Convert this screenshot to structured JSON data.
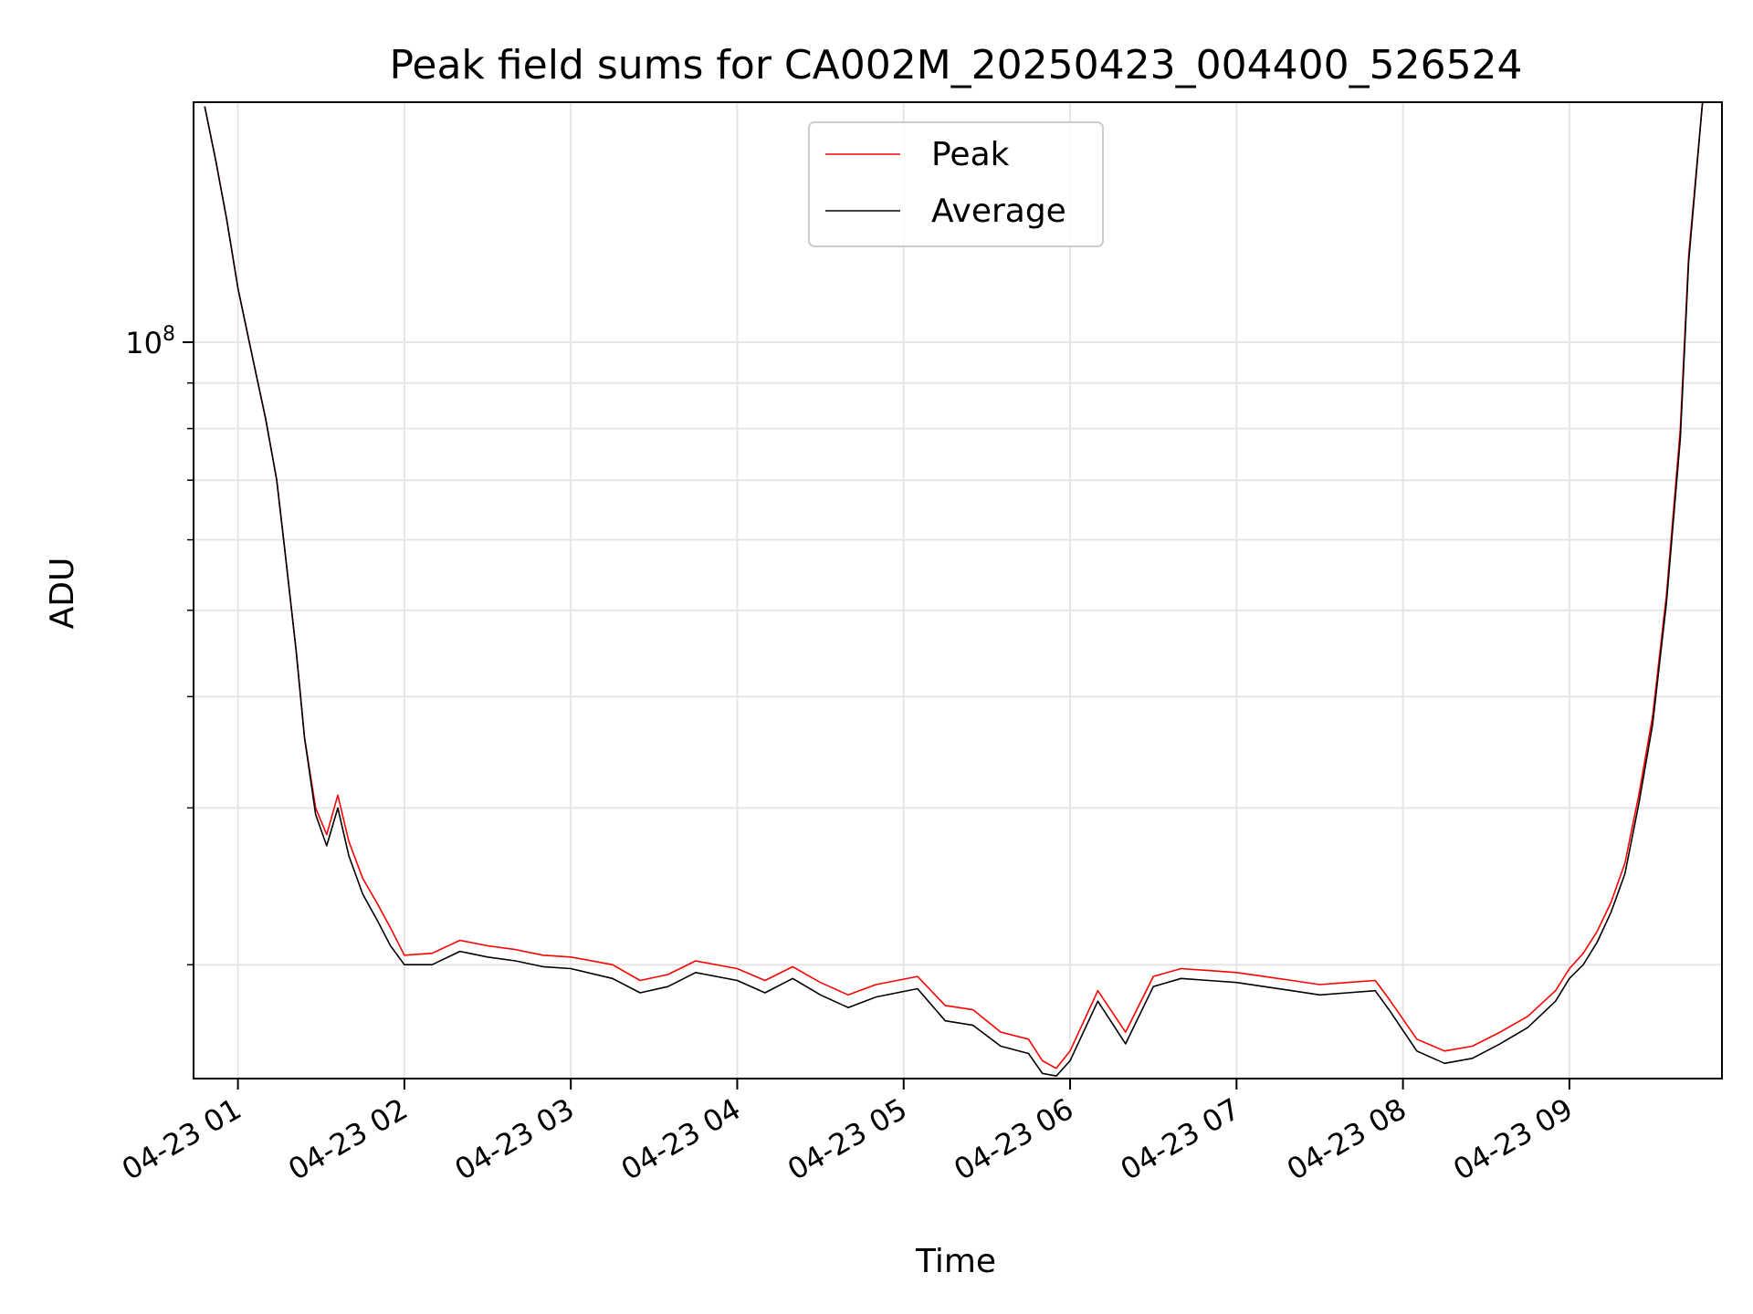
{
  "chart_data": {
    "type": "line",
    "title": "Peak field sums for CA002M_20250423_004400_526524",
    "xlabel": "Time",
    "ylabel": "ADU",
    "x_scale": "time",
    "y_scale": "log",
    "xlim": [
      "2025-04-23 00:44",
      "2025-04-23 09:55"
    ],
    "ylim": [
      14900000,
      186000000
    ],
    "x_ticks": [
      "04-23 01",
      "04-23 02",
      "04-23 03",
      "04-23 04",
      "04-23 05",
      "04-23 06",
      "04-23 07",
      "04-23 08",
      "04-23 09"
    ],
    "y_major_ticks": [
      {
        "value": 100000000,
        "label_base": "10",
        "label_exp": "8"
      }
    ],
    "y_minor_ticks": [
      20000000,
      30000000,
      40000000,
      50000000,
      60000000,
      70000000,
      80000000,
      90000000,
      200000000
    ],
    "grid": true,
    "legend": {
      "position": "upper-center"
    },
    "series": [
      {
        "name": "Peak",
        "color": "#ff0000",
        "x": [
          "2025-04-23 00:48",
          "2025-04-23 00:52",
          "2025-04-23 00:56",
          "2025-04-23 01:00",
          "2025-04-23 01:05",
          "2025-04-23 01:10",
          "2025-04-23 01:14",
          "2025-04-23 01:17",
          "2025-04-23 01:21",
          "2025-04-23 01:24",
          "2025-04-23 01:28",
          "2025-04-23 01:32",
          "2025-04-23 01:36",
          "2025-04-23 01:40",
          "2025-04-23 01:45",
          "2025-04-23 01:50",
          "2025-04-23 01:55",
          "2025-04-23 02:00",
          "2025-04-23 02:10",
          "2025-04-23 02:20",
          "2025-04-23 02:30",
          "2025-04-23 02:40",
          "2025-04-23 02:50",
          "2025-04-23 03:00",
          "2025-04-23 03:15",
          "2025-04-23 03:25",
          "2025-04-23 03:35",
          "2025-04-23 03:45",
          "2025-04-23 04:00",
          "2025-04-23 04:10",
          "2025-04-23 04:20",
          "2025-04-23 04:30",
          "2025-04-23 04:40",
          "2025-04-23 04:50",
          "2025-04-23 05:05",
          "2025-04-23 05:15",
          "2025-04-23 05:25",
          "2025-04-23 05:35",
          "2025-04-23 05:45",
          "2025-04-23 05:50",
          "2025-04-23 05:55",
          "2025-04-23 06:00",
          "2025-04-23 06:10",
          "2025-04-23 06:20",
          "2025-04-23 06:30",
          "2025-04-23 06:40",
          "2025-04-23 06:50",
          "2025-04-23 07:00",
          "2025-04-23 07:10",
          "2025-04-23 07:20",
          "2025-04-23 07:30",
          "2025-04-23 07:40",
          "2025-04-23 07:50",
          "2025-04-23 07:55",
          "2025-04-23 08:05",
          "2025-04-23 08:15",
          "2025-04-23 08:25",
          "2025-04-23 08:35",
          "2025-04-23 08:45",
          "2025-04-23 08:55",
          "2025-04-23 09:00",
          "2025-04-23 09:05",
          "2025-04-23 09:10",
          "2025-04-23 09:15",
          "2025-04-23 09:20",
          "2025-04-23 09:25",
          "2025-04-23 09:30",
          "2025-04-23 09:35",
          "2025-04-23 09:40",
          "2025-04-23 09:43",
          "2025-04-23 09:48",
          "2025-04-23 09:55"
        ],
        "values": [
          184000000,
          160000000,
          137000000,
          115000000,
          97000000,
          82000000,
          70000000,
          58000000,
          45000000,
          36000000,
          30000000,
          28000000,
          31000000,
          27500000,
          25000000,
          23500000,
          22000000,
          20500000,
          20600000,
          21300000,
          21000000,
          20800000,
          20500000,
          20400000,
          20000000,
          19200000,
          19500000,
          20200000,
          19800000,
          19200000,
          19900000,
          19100000,
          18500000,
          19000000,
          19400000,
          18000000,
          17800000,
          16800000,
          16500000,
          15600000,
          15300000,
          16000000,
          18700000,
          16800000,
          19400000,
          19800000,
          19700000,
          19600000,
          19400000,
          19200000,
          19000000,
          19100000,
          19200000,
          18300000,
          16500000,
          16000000,
          16200000,
          16800000,
          17500000,
          18700000,
          19800000,
          20600000,
          21800000,
          23500000,
          26000000,
          31000000,
          38000000,
          52000000,
          80000000,
          125000000,
          186000000,
          186000000
        ]
      },
      {
        "name": "Average",
        "color": "#000000",
        "x": [
          "2025-04-23 00:48",
          "2025-04-23 00:52",
          "2025-04-23 00:56",
          "2025-04-23 01:00",
          "2025-04-23 01:05",
          "2025-04-23 01:10",
          "2025-04-23 01:14",
          "2025-04-23 01:17",
          "2025-04-23 01:21",
          "2025-04-23 01:24",
          "2025-04-23 01:28",
          "2025-04-23 01:32",
          "2025-04-23 01:36",
          "2025-04-23 01:40",
          "2025-04-23 01:45",
          "2025-04-23 01:50",
          "2025-04-23 01:55",
          "2025-04-23 02:00",
          "2025-04-23 02:10",
          "2025-04-23 02:20",
          "2025-04-23 02:30",
          "2025-04-23 02:40",
          "2025-04-23 02:50",
          "2025-04-23 03:00",
          "2025-04-23 03:15",
          "2025-04-23 03:25",
          "2025-04-23 03:35",
          "2025-04-23 03:45",
          "2025-04-23 04:00",
          "2025-04-23 04:10",
          "2025-04-23 04:20",
          "2025-04-23 04:30",
          "2025-04-23 04:40",
          "2025-04-23 04:50",
          "2025-04-23 05:05",
          "2025-04-23 05:15",
          "2025-04-23 05:25",
          "2025-04-23 05:35",
          "2025-04-23 05:45",
          "2025-04-23 05:50",
          "2025-04-23 05:55",
          "2025-04-23 06:00",
          "2025-04-23 06:10",
          "2025-04-23 06:20",
          "2025-04-23 06:30",
          "2025-04-23 06:40",
          "2025-04-23 06:50",
          "2025-04-23 07:00",
          "2025-04-23 07:10",
          "2025-04-23 07:20",
          "2025-04-23 07:30",
          "2025-04-23 07:40",
          "2025-04-23 07:50",
          "2025-04-23 07:55",
          "2025-04-23 08:05",
          "2025-04-23 08:15",
          "2025-04-23 08:25",
          "2025-04-23 08:35",
          "2025-04-23 08:45",
          "2025-04-23 08:55",
          "2025-04-23 09:00",
          "2025-04-23 09:05",
          "2025-04-23 09:10",
          "2025-04-23 09:15",
          "2025-04-23 09:20",
          "2025-04-23 09:25",
          "2025-04-23 09:30",
          "2025-04-23 09:35",
          "2025-04-23 09:40",
          "2025-04-23 09:43",
          "2025-04-23 09:48",
          "2025-04-23 09:55"
        ],
        "values": [
          184000000,
          160000000,
          137000000,
          115000000,
          97000000,
          82000000,
          70000000,
          58000000,
          45000000,
          36000000,
          29500000,
          27200000,
          30000000,
          26500000,
          24000000,
          22500000,
          21000000,
          20000000,
          20000000,
          20700000,
          20400000,
          20200000,
          19900000,
          19800000,
          19300000,
          18600000,
          18900000,
          19600000,
          19200000,
          18600000,
          19300000,
          18500000,
          17900000,
          18400000,
          18800000,
          17300000,
          17100000,
          16200000,
          15900000,
          15100000,
          15000000,
          15600000,
          18200000,
          16300000,
          18900000,
          19300000,
          19200000,
          19100000,
          18900000,
          18700000,
          18500000,
          18600000,
          18700000,
          17800000,
          16000000,
          15500000,
          15700000,
          16300000,
          17000000,
          18200000,
          19300000,
          20000000,
          21200000,
          22900000,
          25300000,
          30300000,
          37200000,
          51000000,
          78000000,
          123000000,
          186000000,
          186000000
        ]
      }
    ]
  }
}
